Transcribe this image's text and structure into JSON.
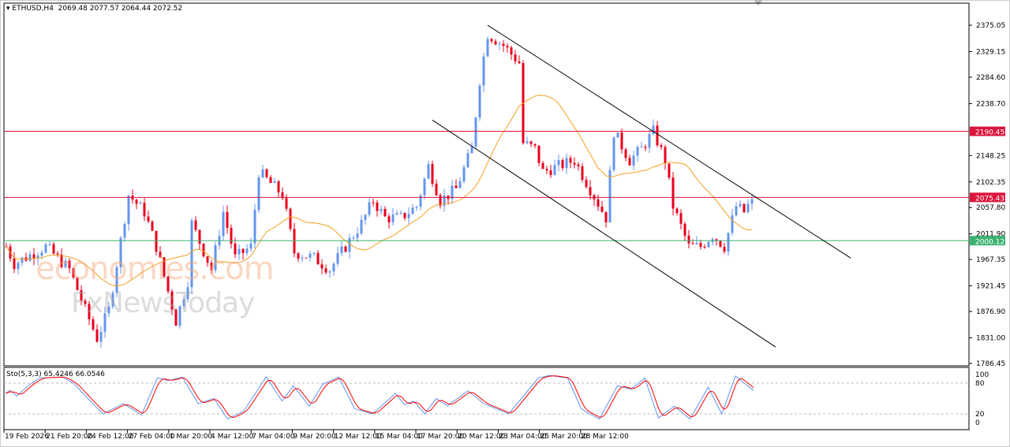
{
  "header": {
    "symbol": "ETHUSD,H4",
    "ohlc": "2069.48 2077.57 2064.44 2072.52"
  },
  "indicator": {
    "label": "Sto(5,3,3) 65.4246 66.0546"
  },
  "watermark": {
    "line1": "economies.com",
    "line2": "FxNewsToday"
  },
  "colors": {
    "bull": "#6495ed",
    "bear": "#e8001c",
    "ma": "#f5a020",
    "resistance": "#dc143c",
    "support": "#3cb371",
    "k": "#6495ed",
    "d": "#ff0000"
  },
  "chart_data": {
    "type": "candlestick",
    "title": "ETHUSD,H4",
    "ylim": [
      1786.45,
      2375.05
    ],
    "y_ticks": [
      "2375.05",
      "2329.15",
      "2284.60",
      "2238.70",
      "2148.25",
      "2102.35",
      "2057.80",
      "2011.90",
      "1967.35",
      "1921.45",
      "1876.90",
      "1831.00",
      "1786.45"
    ],
    "x_ticks": [
      "19 Feb 2026",
      "21 Feb 20:00",
      "24 Feb 12:00",
      "27 Feb 04:00",
      "1 Mar 20:00",
      "4 Mar 12:00",
      "7 Mar 04:00",
      "9 Mar 20:00",
      "12 Mar 12:00",
      "15 Mar 04:00",
      "17 Mar 20:00",
      "20 Mar 12:00",
      "23 Mar 04:00",
      "25 Mar 20:00",
      "28 Mar 12:00"
    ],
    "close_keypoints": [
      [
        0,
        1990
      ],
      [
        2,
        1960
      ],
      [
        10,
        1990
      ],
      [
        16,
        1950
      ],
      [
        20,
        1880
      ],
      [
        23,
        1830
      ],
      [
        26,
        1880
      ],
      [
        30,
        2040
      ],
      [
        31,
        2080
      ],
      [
        35,
        2050
      ],
      [
        38,
        1990
      ],
      [
        43,
        1860
      ],
      [
        46,
        1930
      ],
      [
        47,
        2030
      ],
      [
        52,
        1950
      ],
      [
        55,
        2050
      ],
      [
        58,
        1970
      ],
      [
        62,
        1990
      ],
      [
        64,
        2120
      ],
      [
        67,
        2100
      ],
      [
        70,
        2080
      ],
      [
        73,
        1980
      ],
      [
        78,
        1970
      ],
      [
        82,
        1950
      ],
      [
        86,
        1990
      ],
      [
        90,
        2030
      ],
      [
        93,
        2070
      ],
      [
        96,
        2040
      ],
      [
        100,
        2040
      ],
      [
        104,
        2060
      ],
      [
        107,
        2130
      ],
      [
        110,
        2070
      ],
      [
        114,
        2090
      ],
      [
        118,
        2160
      ],
      [
        120,
        2280
      ],
      [
        122,
        2360
      ],
      [
        126,
        2340
      ],
      [
        130,
        2310
      ],
      [
        131,
        2170
      ],
      [
        134,
        2160
      ],
      [
        136,
        2120
      ],
      [
        140,
        2130
      ],
      [
        144,
        2140
      ],
      [
        148,
        2090
      ],
      [
        152,
        2040
      ],
      [
        154,
        2190
      ],
      [
        158,
        2140
      ],
      [
        161,
        2160
      ],
      [
        164,
        2190
      ],
      [
        167,
        2140
      ],
      [
        169,
        2060
      ],
      [
        173,
        1990
      ],
      [
        176,
        1990
      ],
      [
        179,
        2010
      ],
      [
        182,
        1990
      ],
      [
        185,
        2060
      ],
      [
        187,
        2050
      ],
      [
        189,
        2072.52
      ]
    ],
    "levels": [
      {
        "label": "2190.45",
        "value": 2190.45,
        "kind": "resistance"
      },
      {
        "label": "2075.43",
        "value": 2075.43,
        "kind": "resistance"
      },
      {
        "label": "2000.12",
        "value": 2000.12,
        "kind": "support"
      }
    ],
    "channel": {
      "upper": [
        [
          122,
          2375
        ],
        [
          214,
          1970
        ]
      ],
      "lower": [
        [
          108,
          2210
        ],
        [
          195,
          1815
        ]
      ]
    },
    "stochastic": {
      "levels": [
        "100",
        "80",
        "20",
        "0"
      ],
      "k_keypoints": [
        [
          0,
          60
        ],
        [
          2,
          66
        ],
        [
          5,
          55
        ],
        [
          10,
          75
        ],
        [
          15,
          90
        ],
        [
          25,
          92
        ],
        [
          30,
          80
        ],
        [
          38,
          42
        ],
        [
          43,
          20
        ],
        [
          52,
          40
        ],
        [
          60,
          18
        ],
        [
          67,
          90
        ],
        [
          72,
          85
        ],
        [
          78,
          92
        ],
        [
          85,
          40
        ],
        [
          92,
          50
        ],
        [
          98,
          10
        ],
        [
          105,
          25
        ],
        [
          115,
          92
        ],
        [
          122,
          45
        ],
        [
          127,
          75
        ],
        [
          134,
          35
        ],
        [
          140,
          78
        ],
        [
          147,
          92
        ],
        [
          154,
          30
        ],
        [
          162,
          20
        ],
        [
          172,
          60
        ],
        [
          176,
          38
        ],
        [
          180,
          45
        ],
        [
          185,
          20
        ],
        [
          190,
          50
        ],
        [
          195,
          36
        ],
        [
          204,
          65
        ],
        [
          211,
          40
        ],
        [
          222,
          20
        ],
        [
          235,
          90
        ],
        [
          240,
          95
        ],
        [
          248,
          90
        ],
        [
          254,
          30
        ],
        [
          257,
          22
        ],
        [
          262,
          10
        ],
        [
          270,
          75
        ],
        [
          276,
          68
        ],
        [
          282,
          90
        ],
        [
          288,
          12
        ],
        [
          295,
          35
        ],
        [
          302,
          10
        ],
        [
          310,
          72
        ],
        [
          316,
          20
        ],
        [
          322,
          94
        ],
        [
          330,
          66
        ]
      ]
    }
  }
}
